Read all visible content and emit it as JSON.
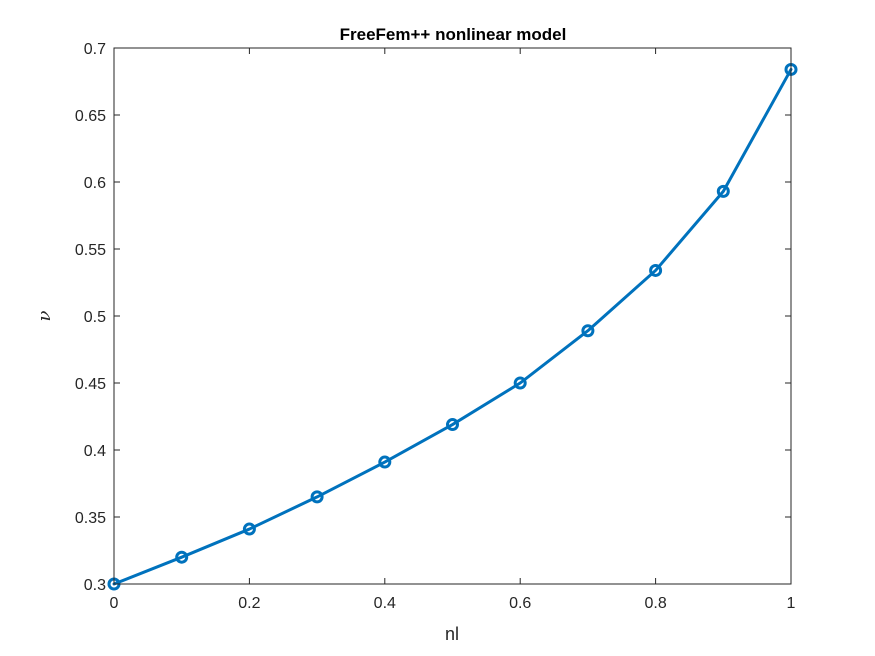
{
  "chart_data": {
    "type": "line",
    "title": "FreeFem++ nonlinear model",
    "xlabel": "nl",
    "ylabel": "ν",
    "xlim": [
      0,
      1
    ],
    "ylim": [
      0.3,
      0.7
    ],
    "xticks": [
      0,
      0.2,
      0.4,
      0.6,
      0.8,
      1
    ],
    "xtick_labels": [
      "0",
      "0.2",
      "0.4",
      "0.6",
      "0.8",
      "1"
    ],
    "yticks": [
      0.3,
      0.35,
      0.4,
      0.45,
      0.5,
      0.55,
      0.6,
      0.65,
      0.7
    ],
    "ytick_labels": [
      "0.3",
      "0.35",
      "0.4",
      "0.45",
      "0.5",
      "0.55",
      "0.6",
      "0.65",
      "0.7"
    ],
    "grid": false,
    "series": [
      {
        "marker": "circle",
        "color": "#0072BD",
        "x": [
          0,
          0.1,
          0.2,
          0.3,
          0.4,
          0.5,
          0.6,
          0.7,
          0.8,
          0.9,
          1.0
        ],
        "y": [
          0.3,
          0.32,
          0.341,
          0.365,
          0.391,
          0.419,
          0.45,
          0.489,
          0.534,
          0.593,
          0.684
        ]
      }
    ]
  }
}
